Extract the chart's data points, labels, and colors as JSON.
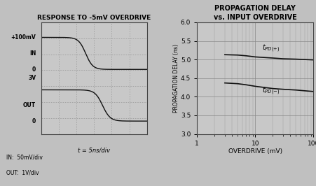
{
  "left_title": "RESPONSE TO -5mV OVERDRIVE",
  "left_xlabel": "t = 5ns/div",
  "left_note1": "IN:  50mV/div",
  "left_note2": "OUT:  1V/div",
  "right_title": "PROPAGATION DELAY\nvs. INPUT OVERDRIVE",
  "right_xlabel": "OVERDRIVE (mV)",
  "right_ylabel": "PROPAGATION DELAY (ns)",
  "right_yticks": [
    3.0,
    3.5,
    4.0,
    4.5,
    5.0,
    5.5,
    6.0
  ],
  "right_xlim": [
    1,
    100
  ],
  "right_ylim": [
    3.0,
    6.0
  ],
  "fig_bg": "#b0b0b0",
  "panel_bg": "#c8c8c8",
  "grid_color": "#999999",
  "line_color": "#111111",
  "tpd_plus_x": [
    3,
    5,
    7,
    10,
    20,
    30,
    50,
    70,
    100
  ],
  "tpd_plus_y": [
    5.13,
    5.12,
    5.1,
    5.07,
    5.04,
    5.02,
    5.01,
    5.0,
    4.99
  ],
  "tpd_minus_x": [
    3,
    5,
    7,
    10,
    20,
    30,
    50,
    70,
    100
  ],
  "tpd_minus_y": [
    4.37,
    4.35,
    4.32,
    4.28,
    4.22,
    4.2,
    4.18,
    4.16,
    4.14
  ]
}
